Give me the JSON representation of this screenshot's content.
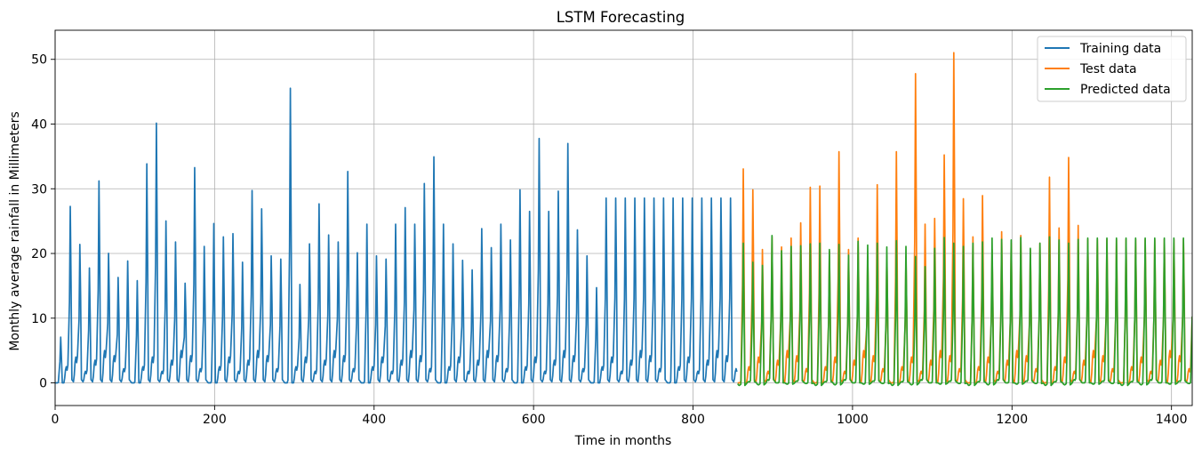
{
  "chart_data": {
    "type": "line",
    "title": "LSTM Forecasting",
    "xlabel": "Time in months",
    "ylabel": "Monthly average rainfall in Millimeters",
    "xlim": [
      0,
      1426
    ],
    "ylim": [
      -3.5,
      54.5
    ],
    "xticks": [
      0,
      200,
      400,
      600,
      800,
      1000,
      1200,
      1400
    ],
    "yticks": [
      0,
      10,
      20,
      30,
      40,
      50
    ],
    "grid": true,
    "legend_position": "top-right",
    "colors": {
      "training": "#1f77b4",
      "test": "#ff7f0e",
      "predicted": "#2ca02c"
    },
    "series": [
      {
        "name": "Training data",
        "color": "#1f77b4",
        "x_start": 0,
        "x_end": 855,
        "period": 12,
        "peaks": [
          7.2,
          27.8,
          21.8,
          18.1,
          31.8,
          20.4,
          16.6,
          19.2,
          16.1,
          34.5,
          40.9,
          25.5,
          22.2,
          15.7,
          33.9,
          21.5,
          25.1,
          23.0,
          23.5,
          19.0,
          30.3,
          27.4,
          20.0,
          19.5,
          46.4,
          15.5,
          21.9,
          28.2,
          23.3,
          22.2,
          33.3,
          20.5,
          25.0,
          20.0,
          19.5,
          25.0,
          27.6,
          25.0,
          31.4,
          35.6,
          25.0,
          21.9,
          19.3,
          17.8,
          24.3,
          21.3,
          25.0,
          22.5,
          30.4,
          27.0,
          38.5,
          27.0,
          30.2,
          37.7,
          24.1,
          20.0,
          15.0,
          29.1
        ],
        "troughs": [
          0,
          2.5,
          4,
          1.8,
          3.5,
          5,
          4.2,
          2.2
        ]
      },
      {
        "name": "Test data",
        "color": "#ff7f0e",
        "x_start": 856,
        "x_end": 1426,
        "period": 12,
        "peaks": [
          33.7,
          30.4,
          21.0,
          23.0,
          21.4,
          22.8,
          25.2,
          30.8,
          31.0,
          20.7,
          36.4,
          21.0,
          22.8,
          19.9,
          31.2,
          20.0,
          36.4,
          19.9,
          48.7,
          25.0,
          25.9,
          35.9,
          52.0,
          29.0,
          23.0,
          29.5,
          21.0,
          23.8,
          22.0,
          23.2,
          21.0,
          22.0,
          32.4,
          24.4,
          35.5,
          24.8,
          22.6
        ],
        "troughs": [
          0,
          2.5,
          4,
          1.8,
          3.5,
          5,
          4.2,
          2.2
        ]
      },
      {
        "name": "Predicted data",
        "color": "#2ca02c",
        "x_start": 856,
        "x_end": 1426,
        "period": 12,
        "peaks": [
          22.0,
          19.0,
          18.5,
          23.2,
          20.8,
          21.5,
          21.6,
          21.9,
          22.0,
          21.0,
          21.8,
          20.1,
          22.3,
          21.7,
          22.0,
          21.4,
          22.4,
          21.5,
          19.9,
          18.3,
          21.2,
          22.9,
          22.0,
          21.5,
          22.0,
          22.2,
          22.8,
          22.6,
          22.5,
          22.9,
          21.2,
          22.0,
          23.0,
          22.5,
          22.0,
          22.6,
          22.8
        ],
        "troughs": [
          -0.4,
          0.2,
          -0.3,
          0.5,
          0.0,
          -0.2,
          0.3,
          -0.1
        ]
      }
    ]
  }
}
